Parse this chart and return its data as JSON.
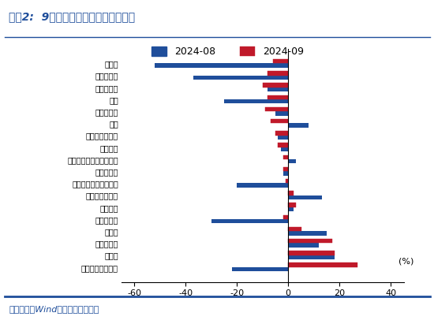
{
  "title": "图表2:  9月四大税种收入增速表现分化",
  "categories": [
    "印花税",
    "车辆购置税",
    "国内消费税",
    "契税",
    "国内增值税",
    "关税",
    "城市维护建设税",
    "税收收入",
    "进口环节增值税和消费税",
    "个人所得税",
    "土地和房地产相关税收",
    "城镇土地使用税",
    "其他税收",
    "土地增值税",
    "资源税",
    "耕地占用税",
    "房产税",
    "外贸企业出口退税"
  ],
  "values_2024_08": [
    -52,
    -37,
    -8,
    -25,
    -5,
    8,
    -4,
    -3,
    3,
    -2,
    -20,
    13,
    2,
    -30,
    15,
    12,
    18,
    -22
  ],
  "values_2024_09": [
    -6,
    -8,
    -10,
    -8,
    -9,
    -7,
    -5,
    -4,
    -2,
    -2,
    -1,
    2,
    3,
    -2,
    5,
    17,
    18,
    27
  ],
  "color_08": "#1F4E9B",
  "color_09": "#C0192A",
  "legend_08": "2024-08",
  "legend_09": "2024-09",
  "pct_label": "(%)",
  "xlim": [
    -65,
    45
  ],
  "xticks": [
    -60,
    -40,
    -20,
    0,
    20,
    40
  ],
  "footnote": "资料来源：Wind，国盛证券研究所",
  "title_color": "#1F4E9B",
  "title_fontsize": 10,
  "bar_height": 0.35,
  "background_color": "#FFFFFF"
}
